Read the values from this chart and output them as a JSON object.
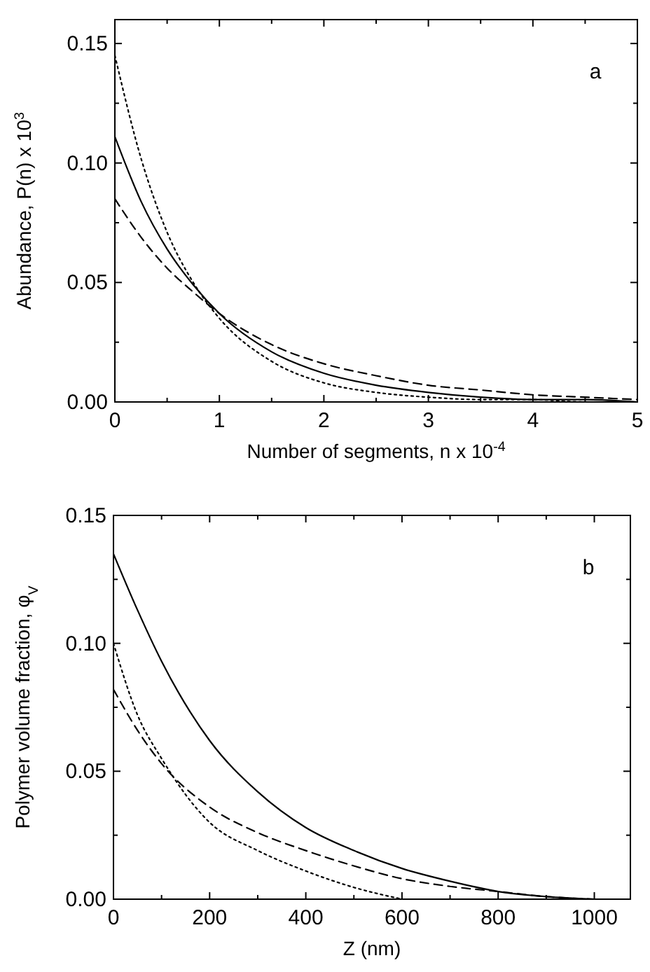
{
  "chart_data": [
    {
      "type": "line",
      "xlabel": "Number of segments, n x 10$^{-4}$",
      "ylabel": "Abundance,  P(n) x 10$^{3}$",
      "annotations": [
        "a"
      ],
      "xlim": [
        0,
        5
      ],
      "ylim": [
        0,
        0.16
      ],
      "xticks": [
        0,
        {
          "value": 0.5,
          "label": null
        },
        1,
        {
          "value": 1.5,
          "label": null
        },
        2,
        {
          "value": 2.5,
          "label": null
        },
        3,
        {
          "value": 3.5,
          "label": null
        },
        4,
        {
          "value": 4.5,
          "label": null
        },
        5
      ],
      "yticks": [
        {
          "value": 0,
          "label": "0.00"
        },
        {
          "value": 0.025,
          "label": null
        },
        {
          "value": 0.05,
          "label": "0.05"
        },
        {
          "value": 0.075,
          "label": null
        },
        {
          "value": 0.1,
          "label": "0.10"
        },
        {
          "value": 0.125,
          "label": null
        },
        {
          "value": 0.15,
          "label": "0.15"
        }
      ],
      "x": [
        0,
        0.25,
        0.5,
        0.75,
        1,
        1.5,
        2,
        2.5,
        3,
        3.5,
        4,
        4.5,
        5
      ],
      "series": [
        {
          "color": "#000000",
          "line_style": "solid",
          "values": [
            0.111,
            0.084,
            0.064,
            0.049,
            0.037,
            0.021,
            0.012,
            0.007,
            0.004,
            0.002,
            0.001,
            0.001,
            0.0
          ]
        },
        {
          "color": "#000000",
          "line_style": "dashed",
          "values": [
            0.085,
            0.069,
            0.056,
            0.046,
            0.037,
            0.024,
            0.016,
            0.011,
            0.007,
            0.005,
            0.003,
            0.002,
            0.001
          ]
        },
        {
          "color": "#000000",
          "line_style": "dotted",
          "values": [
            0.145,
            0.102,
            0.071,
            0.05,
            0.035,
            0.017,
            0.008,
            0.004,
            0.002,
            0.001,
            0.001,
            0.0,
            0.0
          ]
        }
      ]
    },
    {
      "type": "line",
      "xlabel": "Z  (nm)",
      "ylabel": "Polymer volume fraction, φ$_{V}$",
      "annotations": [
        "b"
      ],
      "xlim": [
        0,
        1075
      ],
      "ylim": [
        0,
        0.15
      ],
      "xticks": [
        0,
        {
          "value": 100,
          "label": null
        },
        200,
        {
          "value": 300,
          "label": null
        },
        400,
        {
          "value": 500,
          "label": null
        },
        600,
        {
          "value": 700,
          "label": null
        },
        800,
        {
          "value": 900,
          "label": null
        },
        1000
      ],
      "yticks": [
        {
          "value": 0,
          "label": "0.00"
        },
        {
          "value": 0.025,
          "label": null
        },
        {
          "value": 0.05,
          "label": "0.05"
        },
        {
          "value": 0.075,
          "label": null
        },
        {
          "value": 0.1,
          "label": "0.10"
        },
        {
          "value": 0.125,
          "label": null
        },
        {
          "value": 0.15,
          "label": "0.15"
        }
      ],
      "x": [
        0,
        50,
        100,
        200,
        300,
        400,
        500,
        600,
        700,
        800,
        900,
        1000
      ],
      "series": [
        {
          "color": "#000000",
          "line_style": "solid",
          "values": [
            0.135,
            0.113,
            0.093,
            0.062,
            0.042,
            0.028,
            0.019,
            0.012,
            0.007,
            0.003,
            0.001,
            0.0
          ]
        },
        {
          "color": "#000000",
          "line_style": "dashed",
          "values": [
            0.082,
            0.066,
            0.053,
            0.036,
            0.026,
            0.019,
            0.013,
            0.008,
            0.005,
            0.003,
            0.001,
            0.0
          ]
        },
        {
          "color": "#000000",
          "line_style": "dotted",
          "values": [
            0.1,
            0.072,
            0.055,
            0.03,
            0.019,
            0.011,
            0.0046,
            0.0,
            null,
            null,
            null,
            null
          ]
        }
      ]
    }
  ]
}
